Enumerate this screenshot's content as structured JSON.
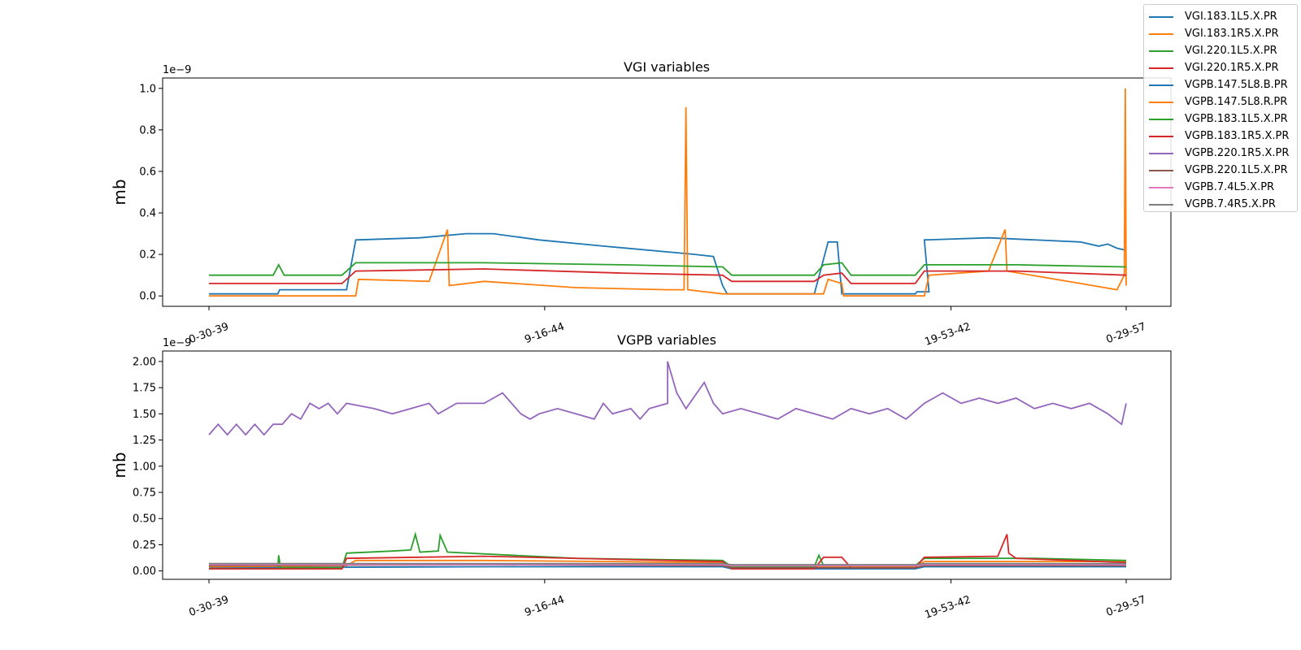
{
  "chart_data": [
    {
      "type": "line",
      "title": "VGI variables",
      "xlabel": "",
      "ylabel": "mb",
      "y_scale_label": "1e−9",
      "x_tick_labels": [
        "0-30-39",
        "9-16-44",
        "19-53-42",
        "0-29-57"
      ],
      "x_tick_positions": [
        0,
        0.366,
        0.809,
        1.0
      ],
      "ylim": [
        -0.05,
        1.05
      ],
      "y_ticks": [
        "0.0",
        "0.2",
        "0.4",
        "0.6",
        "0.8",
        "1.0"
      ],
      "grid": false,
      "series": [
        {
          "name": "VGI.183.1L5.X.PR",
          "color": "#1f77b4",
          "points": [
            [
              0.0,
              0.01
            ],
            [
              0.075,
              0.01
            ],
            [
              0.077,
              0.03
            ],
            [
              0.15,
              0.03
            ],
            [
              0.16,
              0.27
            ],
            [
              0.23,
              0.28
            ],
            [
              0.28,
              0.3
            ],
            [
              0.31,
              0.3
            ],
            [
              0.36,
              0.27
            ],
            [
              0.43,
              0.24
            ],
            [
              0.53,
              0.2
            ],
            [
              0.55,
              0.19
            ],
            [
              0.56,
              0.05
            ],
            [
              0.565,
              0.01
            ],
            [
              0.66,
              0.01
            ],
            [
              0.675,
              0.26
            ],
            [
              0.685,
              0.26
            ],
            [
              0.69,
              0.01
            ],
            [
              0.77,
              0.01
            ],
            [
              0.772,
              0.02
            ],
            [
              0.785,
              0.02
            ],
            [
              0.78,
              0.27
            ],
            [
              0.85,
              0.28
            ],
            [
              0.95,
              0.26
            ],
            [
              0.97,
              0.24
            ],
            [
              0.98,
              0.25
            ],
            [
              0.99,
              0.23
            ],
            [
              1.0,
              0.22
            ]
          ]
        },
        {
          "name": "VGI.183.1R5.X.PR",
          "color": "#ff7f0e",
          "points": [
            [
              0.0,
              0.0
            ],
            [
              0.16,
              0.0
            ],
            [
              0.163,
              0.08
            ],
            [
              0.24,
              0.07
            ],
            [
              0.26,
              0.32
            ],
            [
              0.262,
              0.05
            ],
            [
              0.3,
              0.07
            ],
            [
              0.4,
              0.04
            ],
            [
              0.5,
              0.03
            ],
            [
              0.518,
              0.03
            ],
            [
              0.52,
              0.91
            ],
            [
              0.522,
              0.03
            ],
            [
              0.56,
              0.01
            ],
            [
              0.67,
              0.01
            ],
            [
              0.675,
              0.08
            ],
            [
              0.69,
              0.06
            ],
            [
              0.692,
              0.0
            ],
            [
              0.78,
              0.0
            ],
            [
              0.785,
              0.1
            ],
            [
              0.85,
              0.12
            ],
            [
              0.868,
              0.32
            ],
            [
              0.87,
              0.12
            ],
            [
              0.95,
              0.06
            ],
            [
              0.99,
              0.03
            ],
            [
              0.998,
              0.1
            ],
            [
              0.999,
              1.0
            ],
            [
              1.0,
              0.05
            ]
          ]
        },
        {
          "name": "VGI.220.1L5.X.PR",
          "color": "#2ca02c",
          "points": [
            [
              0.0,
              0.1
            ],
            [
              0.07,
              0.1
            ],
            [
              0.076,
              0.15
            ],
            [
              0.082,
              0.1
            ],
            [
              0.145,
              0.1
            ],
            [
              0.16,
              0.16
            ],
            [
              0.3,
              0.16
            ],
            [
              0.45,
              0.15
            ],
            [
              0.56,
              0.14
            ],
            [
              0.57,
              0.1
            ],
            [
              0.66,
              0.1
            ],
            [
              0.67,
              0.15
            ],
            [
              0.69,
              0.16
            ],
            [
              0.7,
              0.1
            ],
            [
              0.77,
              0.1
            ],
            [
              0.78,
              0.15
            ],
            [
              0.88,
              0.15
            ],
            [
              1.0,
              0.14
            ]
          ]
        },
        {
          "name": "VGI.220.1R5.X.PR",
          "color": "#d62728",
          "points": [
            [
              0.0,
              0.06
            ],
            [
              0.145,
              0.06
            ],
            [
              0.16,
              0.12
            ],
            [
              0.3,
              0.13
            ],
            [
              0.45,
              0.11
            ],
            [
              0.56,
              0.1
            ],
            [
              0.57,
              0.07
            ],
            [
              0.66,
              0.07
            ],
            [
              0.67,
              0.1
            ],
            [
              0.69,
              0.11
            ],
            [
              0.7,
              0.06
            ],
            [
              0.77,
              0.06
            ],
            [
              0.78,
              0.12
            ],
            [
              0.88,
              0.12
            ],
            [
              1.0,
              0.1
            ]
          ]
        }
      ]
    },
    {
      "type": "line",
      "title": "VGPB variables",
      "xlabel": "",
      "ylabel": "mb",
      "y_scale_label": "1e−9",
      "x_tick_labels": [
        "0-30-39",
        "9-16-44",
        "19-53-42",
        "0-29-57"
      ],
      "x_tick_positions": [
        0,
        0.366,
        0.809,
        1.0
      ],
      "ylim": [
        -0.08,
        2.1
      ],
      "y_ticks": [
        "0.00",
        "0.25",
        "0.50",
        "0.75",
        "1.00",
        "1.25",
        "1.50",
        "1.75",
        "2.00"
      ],
      "grid": false,
      "series": [
        {
          "name": "VGPB.147.5L8.B.PR",
          "color": "#1f77b4",
          "points": [
            [
              0.0,
              0.03
            ],
            [
              0.3,
              0.04
            ],
            [
              0.56,
              0.04
            ],
            [
              0.57,
              0.02
            ],
            [
              0.77,
              0.02
            ],
            [
              0.78,
              0.04
            ],
            [
              1.0,
              0.04
            ]
          ]
        },
        {
          "name": "VGPB.147.5L8.R.PR",
          "color": "#ff7f0e",
          "points": [
            [
              0.0,
              0.04
            ],
            [
              0.15,
              0.05
            ],
            [
              0.16,
              0.1
            ],
            [
              0.3,
              0.1
            ],
            [
              0.56,
              0.08
            ],
            [
              0.57,
              0.04
            ],
            [
              0.77,
              0.04
            ],
            [
              0.78,
              0.09
            ],
            [
              1.0,
              0.09
            ]
          ]
        },
        {
          "name": "VGPB.183.1L5.X.PR",
          "color": "#2ca02c",
          "points": [
            [
              0.0,
              0.02
            ],
            [
              0.075,
              0.02
            ],
            [
              0.076,
              0.15
            ],
            [
              0.078,
              0.03
            ],
            [
              0.145,
              0.03
            ],
            [
              0.15,
              0.17
            ],
            [
              0.2,
              0.19
            ],
            [
              0.22,
              0.2
            ],
            [
              0.225,
              0.35
            ],
            [
              0.23,
              0.18
            ],
            [
              0.25,
              0.19
            ],
            [
              0.252,
              0.34
            ],
            [
              0.26,
              0.18
            ],
            [
              0.4,
              0.12
            ],
            [
              0.56,
              0.1
            ],
            [
              0.57,
              0.04
            ],
            [
              0.66,
              0.04
            ],
            [
              0.665,
              0.15
            ],
            [
              0.67,
              0.05
            ],
            [
              0.77,
              0.05
            ],
            [
              0.78,
              0.12
            ],
            [
              0.9,
              0.12
            ],
            [
              1.0,
              0.1
            ]
          ]
        },
        {
          "name": "VGPB.183.1R5.X.PR",
          "color": "#d62728",
          "points": [
            [
              0.0,
              0.02
            ],
            [
              0.145,
              0.02
            ],
            [
              0.15,
              0.12
            ],
            [
              0.3,
              0.14
            ],
            [
              0.45,
              0.11
            ],
            [
              0.56,
              0.09
            ],
            [
              0.57,
              0.02
            ],
            [
              0.66,
              0.02
            ],
            [
              0.67,
              0.13
            ],
            [
              0.69,
              0.13
            ],
            [
              0.7,
              0.03
            ],
            [
              0.77,
              0.03
            ],
            [
              0.78,
              0.13
            ],
            [
              0.86,
              0.14
            ],
            [
              0.87,
              0.35
            ],
            [
              0.872,
              0.17
            ],
            [
              0.88,
              0.12
            ],
            [
              1.0,
              0.08
            ]
          ]
        },
        {
          "name": "VGPB.220.1R5.X.PR",
          "color": "#9467bd",
          "points": [
            [
              0.0,
              1.3
            ],
            [
              0.01,
              1.4
            ],
            [
              0.02,
              1.3
            ],
            [
              0.03,
              1.4
            ],
            [
              0.04,
              1.3
            ],
            [
              0.05,
              1.4
            ],
            [
              0.06,
              1.3
            ],
            [
              0.07,
              1.4
            ],
            [
              0.08,
              1.4
            ],
            [
              0.09,
              1.5
            ],
            [
              0.1,
              1.45
            ],
            [
              0.11,
              1.6
            ],
            [
              0.12,
              1.55
            ],
            [
              0.13,
              1.6
            ],
            [
              0.14,
              1.5
            ],
            [
              0.15,
              1.6
            ],
            [
              0.18,
              1.55
            ],
            [
              0.2,
              1.5
            ],
            [
              0.22,
              1.55
            ],
            [
              0.24,
              1.6
            ],
            [
              0.25,
              1.5
            ],
            [
              0.27,
              1.6
            ],
            [
              0.3,
              1.6
            ],
            [
              0.32,
              1.7
            ],
            [
              0.33,
              1.6
            ],
            [
              0.34,
              1.5
            ],
            [
              0.35,
              1.45
            ],
            [
              0.36,
              1.5
            ],
            [
              0.38,
              1.55
            ],
            [
              0.4,
              1.5
            ],
            [
              0.42,
              1.45
            ],
            [
              0.43,
              1.6
            ],
            [
              0.44,
              1.5
            ],
            [
              0.46,
              1.55
            ],
            [
              0.47,
              1.45
            ],
            [
              0.48,
              1.55
            ],
            [
              0.5,
              1.6
            ],
            [
              0.5,
              2.0
            ],
            [
              0.51,
              1.7
            ],
            [
              0.52,
              1.55
            ],
            [
              0.54,
              1.8
            ],
            [
              0.55,
              1.6
            ],
            [
              0.56,
              1.5
            ],
            [
              0.58,
              1.55
            ],
            [
              0.6,
              1.5
            ],
            [
              0.62,
              1.45
            ],
            [
              0.64,
              1.55
            ],
            [
              0.66,
              1.5
            ],
            [
              0.68,
              1.45
            ],
            [
              0.7,
              1.55
            ],
            [
              0.72,
              1.5
            ],
            [
              0.74,
              1.55
            ],
            [
              0.76,
              1.45
            ],
            [
              0.78,
              1.6
            ],
            [
              0.8,
              1.7
            ],
            [
              0.82,
              1.6
            ],
            [
              0.84,
              1.65
            ],
            [
              0.86,
              1.6
            ],
            [
              0.88,
              1.65
            ],
            [
              0.9,
              1.55
            ],
            [
              0.92,
              1.6
            ],
            [
              0.94,
              1.55
            ],
            [
              0.96,
              1.6
            ],
            [
              0.98,
              1.5
            ],
            [
              0.995,
              1.4
            ],
            [
              1.0,
              1.6
            ]
          ]
        },
        {
          "name": "VGPB.220.1L5.X.PR",
          "color": "#8c564b",
          "points": [
            [
              0.0,
              0.05
            ],
            [
              0.3,
              0.06
            ],
            [
              0.56,
              0.05
            ],
            [
              0.57,
              0.03
            ],
            [
              0.77,
              0.03
            ],
            [
              0.78,
              0.05
            ],
            [
              1.0,
              0.05
            ]
          ]
        },
        {
          "name": "VGPB.7.4L5.X.PR",
          "color": "#e377c2",
          "points": [
            [
              0.0,
              0.06
            ],
            [
              0.3,
              0.06
            ],
            [
              0.56,
              0.06
            ],
            [
              0.57,
              0.05
            ],
            [
              0.77,
              0.05
            ],
            [
              0.78,
              0.06
            ],
            [
              1.0,
              0.06
            ]
          ]
        },
        {
          "name": "VGPB.7.4R5.X.PR",
          "color": "#7f7f7f",
          "points": [
            [
              0.0,
              0.07
            ],
            [
              0.3,
              0.07
            ],
            [
              0.56,
              0.07
            ],
            [
              0.57,
              0.06
            ],
            [
              0.77,
              0.06
            ],
            [
              0.78,
              0.07
            ],
            [
              1.0,
              0.07
            ]
          ]
        }
      ]
    }
  ],
  "legend": {
    "position": "top-right",
    "items": [
      {
        "label": "VGI.183.1L5.X.PR",
        "color": "#1f77b4"
      },
      {
        "label": "VGI.183.1R5.X.PR",
        "color": "#ff7f0e"
      },
      {
        "label": "VGI.220.1L5.X.PR",
        "color": "#2ca02c"
      },
      {
        "label": "VGI.220.1R5.X.PR",
        "color": "#d62728"
      },
      {
        "label": "VGPB.147.5L8.B.PR",
        "color": "#1f77b4"
      },
      {
        "label": "VGPB.147.5L8.R.PR",
        "color": "#ff7f0e"
      },
      {
        "label": "VGPB.183.1L5.X.PR",
        "color": "#2ca02c"
      },
      {
        "label": "VGPB.183.1R5.X.PR",
        "color": "#d62728"
      },
      {
        "label": "VGPB.220.1R5.X.PR",
        "color": "#9467bd"
      },
      {
        "label": "VGPB.220.1L5.X.PR",
        "color": "#8c564b"
      },
      {
        "label": "VGPB.7.4L5.X.PR",
        "color": "#e377c2"
      },
      {
        "label": "VGPB.7.4R5.X.PR",
        "color": "#7f7f7f"
      }
    ]
  }
}
